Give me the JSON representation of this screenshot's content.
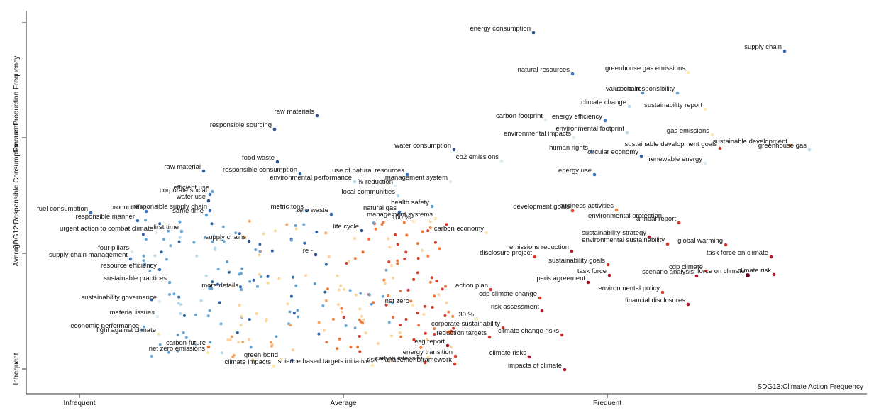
{
  "chart_data": {
    "type": "scatter",
    "title": "",
    "xlabel": "SDG13:Climate Action Frequency",
    "ylabel": "SDG12:Responsible Consumption and Production Frequency",
    "xlim": [
      0,
      1225
    ],
    "ylim": [
      0,
      582
    ],
    "x_ticks": [
      {
        "value": 112,
        "label": "Infrequent"
      },
      {
        "value": 484,
        "label": "Average"
      },
      {
        "value": 856,
        "label": "Frequent"
      }
    ],
    "y_ticks": [
      {
        "value": 520,
        "label": "Infrequent"
      },
      {
        "value": 357,
        "label": "Average"
      },
      {
        "value": 194,
        "label": "Frequent"
      },
      {
        "value": 32,
        "label": ""
      }
    ],
    "legend": "none",
    "grid": false,
    "labeled_points": [
      {
        "term": "energy consumption",
        "x": 752,
        "y": 46,
        "color": "#2c4e8c"
      },
      {
        "term": "supply chain",
        "x": 1106,
        "y": 72,
        "color": "#2c63a6"
      },
      {
        "term": "natural resources",
        "x": 807,
        "y": 104,
        "color": "#3a75b8"
      },
      {
        "term": "greenhouse gas emissions",
        "x": 970,
        "y": 102,
        "color": "#fde9b0"
      },
      {
        "term": "social responsibility",
        "x": 955,
        "y": 131,
        "color": "#6aa6d3"
      },
      {
        "term": "value chain",
        "x": 906,
        "y": 131,
        "color": "#5594c9"
      },
      {
        "term": "climate change",
        "x": 887,
        "y": 150,
        "color": "#b6d6ea"
      },
      {
        "term": "raw materials",
        "x": 447,
        "y": 163,
        "color": "#2c4e8c"
      },
      {
        "term": "carbon footprint",
        "x": 769,
        "y": 169,
        "color": "#dcebf3"
      },
      {
        "term": "energy efficiency",
        "x": 853,
        "y": 170,
        "color": "#3a75b8"
      },
      {
        "term": "sustainability report",
        "x": 994,
        "y": 154,
        "color": "#fde9b0"
      },
      {
        "term": "responsible sourcing",
        "x": 387,
        "y": 182,
        "color": "#2c4e8c"
      },
      {
        "term": "environmental impacts",
        "x": 809,
        "y": 194,
        "color": "#dcebf3"
      },
      {
        "term": "environmental footprint",
        "x": 884,
        "y": 187,
        "color": "#b6d6ea"
      },
      {
        "term": "gas emissions",
        "x": 1004,
        "y": 190,
        "color": "#fde9b0"
      },
      {
        "term": "sustainable development",
        "x": 1114,
        "y": 205,
        "color": "#f07a3a"
      },
      {
        "term": "greenhouse gas",
        "x": 1141,
        "y": 211,
        "color": "#b6d6ea"
      },
      {
        "term": "water consumption",
        "x": 640,
        "y": 211,
        "color": "#2c4e8c"
      },
      {
        "term": "human rights",
        "x": 833,
        "y": 214,
        "color": "#3a75b8"
      },
      {
        "term": "circular economy",
        "x": 904,
        "y": 220,
        "color": "#2c63a6"
      },
      {
        "term": "sustainable development goals",
        "x": 1015,
        "y": 209,
        "color": "#d63b2b"
      },
      {
        "term": "renewable energy",
        "x": 994,
        "y": 230,
        "color": "#dcebf3"
      },
      {
        "term": "food waste",
        "x": 391,
        "y": 228,
        "color": "#2c4e8c"
      },
      {
        "term": "management system",
        "x": 635,
        "y": 256,
        "color": "#dcebf3"
      },
      {
        "term": "co2 emissions",
        "x": 707,
        "y": 227,
        "color": "#dcebf3"
      },
      {
        "term": "raw material",
        "x": 287,
        "y": 241,
        "color": "#2c63a6"
      },
      {
        "term": "use of natural resources",
        "x": 574,
        "y": 246,
        "color": "#3a75b8"
      },
      {
        "term": "responsible consumption",
        "x": 423,
        "y": 245,
        "color": "#2c63a6"
      },
      {
        "term": "energy use",
        "x": 838,
        "y": 246,
        "color": "#3a75b8"
      },
      {
        "term": "environmental performance",
        "x": 500,
        "y": 256,
        "color": "#b6d6ea"
      },
      {
        "term": "% reduction",
        "x": 558,
        "y": 262,
        "color": "#dcebf3"
      },
      {
        "term": "local communities",
        "x": 561,
        "y": 276,
        "color": "#b6d6ea"
      },
      {
        "term": "corporate social",
        "x": 296,
        "y": 274,
        "color": "#3a75b8"
      },
      {
        "term": "efficient use",
        "x": 299,
        "y": 270,
        "color": "#6aa6d3"
      },
      {
        "term": "water use",
        "x": 294,
        "y": 283,
        "color": "#2c4e8c"
      },
      {
        "term": "health safety",
        "x": 609,
        "y": 291,
        "color": "#6aa6d3"
      },
      {
        "term": "business activities",
        "x": 869,
        "y": 296,
        "color": "#f07a3a"
      },
      {
        "term": "fuel consumption",
        "x": 128,
        "y": 300,
        "color": "#3a75b8"
      },
      {
        "term": "product life",
        "x": 206,
        "y": 298,
        "color": "#3a75b8"
      },
      {
        "term": "same time",
        "x": 291,
        "y": 303,
        "color": "#6aa6d3"
      },
      {
        "term": "responsible supply chain",
        "x": 296,
        "y": 297,
        "color": "#2c63a6"
      },
      {
        "term": "metric tons",
        "x": 432,
        "y": 297,
        "color": "#3a75b8"
      },
      {
        "term": "natural gas",
        "x": 563,
        "y": 299,
        "color": "#3a75b8"
      },
      {
        "term": "management systems",
        "x": 614,
        "y": 308,
        "color": "#fde9b0"
      },
      {
        "term": "environmental protection",
        "x": 937,
        "y": 310,
        "color": "#dcebf3"
      },
      {
        "term": "development goals",
        "x": 807,
        "y": 297,
        "color": "#d63b2b"
      },
      {
        "term": "annual report",
        "x": 957,
        "y": 314,
        "color": "#d63b2b"
      },
      {
        "term": "zero waste",
        "x": 467,
        "y": 302,
        "color": "#2c63a6"
      },
      {
        "term": "responsible manner",
        "x": 194,
        "y": 311,
        "color": "#3a75b8"
      },
      {
        "term": "life cycle",
        "x": 510,
        "y": 325,
        "color": "#2c4e8c"
      },
      {
        "term": "100 %",
        "x": 583,
        "y": 312,
        "color": "#fde9b0"
      },
      {
        "term": "first time",
        "x": 256,
        "y": 326,
        "color": "#6aa6d3"
      },
      {
        "term": "carbon economy",
        "x": 686,
        "y": 328,
        "color": "#fde9b0"
      },
      {
        "term": "sustainability strategy",
        "x": 915,
        "y": 334,
        "color": "#b2182b"
      },
      {
        "term": "urgent action to combat climate",
        "x": 220,
        "y": 328,
        "color": "#dcebf3"
      },
      {
        "term": "supply chains",
        "x": 351,
        "y": 340,
        "color": "#2c4e8c"
      },
      {
        "term": "four pillars",
        "x": 186,
        "y": 355,
        "color": "#dcebf3"
      },
      {
        "term": "emissions reduction",
        "x": 806,
        "y": 354,
        "color": "#b2182b"
      },
      {
        "term": "environmental sustainability",
        "x": 941,
        "y": 344,
        "color": "#d63b2b"
      },
      {
        "term": "global warming",
        "x": 1023,
        "y": 345,
        "color": "#d63b2b"
      },
      {
        "term": "supply chain management",
        "x": 184,
        "y": 365,
        "color": "#3a75b8"
      },
      {
        "term": "re -",
        "x": 445,
        "y": 359,
        "color": "#2c4e8c"
      },
      {
        "term": "disclosure project",
        "x": 754,
        "y": 362,
        "color": "#d63b2b"
      },
      {
        "term": "cdp climate",
        "x": 995,
        "y": 382,
        "color": "#d63b2b"
      },
      {
        "term": "task force on climate",
        "x": 1087,
        "y": 362,
        "color": "#b2182b"
      },
      {
        "term": "sustainability goals",
        "x": 857,
        "y": 373,
        "color": "#d63b2b"
      },
      {
        "term": "paris agreement",
        "x": 829,
        "y": 398,
        "color": "#b2182b"
      },
      {
        "term": "task force",
        "x": 859,
        "y": 388,
        "color": "#b2182b"
      },
      {
        "term": "scenario analysis",
        "x": 982,
        "y": 389,
        "color": "#b2182b"
      },
      {
        "term": "climate risk",
        "x": 1091,
        "y": 387,
        "color": "#b2182b"
      },
      {
        "term": "force on climate",
        "x": 1054,
        "y": 388,
        "color": "#67001f"
      },
      {
        "term": "resource efficiency",
        "x": 225,
        "y": 380,
        "color": "#3a75b8"
      },
      {
        "term": "action plan",
        "x": 692,
        "y": 408,
        "color": "#d63b2b"
      },
      {
        "term": "sustainable practices",
        "x": 239,
        "y": 398,
        "color": "#6aa6d3"
      },
      {
        "term": "more details",
        "x": 340,
        "y": 408,
        "color": "#6aa6d3"
      },
      {
        "term": "environmental policy",
        "x": 934,
        "y": 412,
        "color": "#d63b2b"
      },
      {
        "term": "cdp climate change",
        "x": 761,
        "y": 420,
        "color": "#d63b2b"
      },
      {
        "term": "sustainability governance",
        "x": 225,
        "y": 425,
        "color": "#dcebf3"
      },
      {
        "term": "financial disclosures",
        "x": 970,
        "y": 429,
        "color": "#b2182b"
      },
      {
        "term": "net zero",
        "x": 581,
        "y": 430,
        "color": "#fde9b0"
      },
      {
        "term": "risk assessment",
        "x": 764,
        "y": 438,
        "color": "#b2182b"
      },
      {
        "term": "material issues",
        "x": 222,
        "y": 446,
        "color": "#dcebf3"
      },
      {
        "term": "30 %",
        "x": 672,
        "y": 449,
        "color": "#fde9b0"
      },
      {
        "term": "corporate sustainability",
        "x": 709,
        "y": 462,
        "color": "#d63b2b"
      },
      {
        "term": "economic performance",
        "x": 200,
        "y": 465,
        "color": "#6aa6d3"
      },
      {
        "term": "reduction targets",
        "x": 690,
        "y": 475,
        "color": "#d63b2b"
      },
      {
        "term": "climate change risks",
        "x": 792,
        "y": 472,
        "color": "#d63b2b"
      },
      {
        "term": "fight against climate",
        "x": 224,
        "y": 471,
        "color": "#fde9b0"
      },
      {
        "term": "esg report",
        "x": 631,
        "y": 487,
        "color": "#b2182b"
      },
      {
        "term": "carbon future",
        "x": 294,
        "y": 489,
        "color": "#f07a3a"
      },
      {
        "term": "climate risks",
        "x": 746,
        "y": 503,
        "color": "#b2182b"
      },
      {
        "term": "net zero emissions",
        "x": 293,
        "y": 497,
        "color": "#fde9b0"
      },
      {
        "term": "green bond",
        "x": 396,
        "y": 506,
        "color": "#fde9b0"
      },
      {
        "term": "energy transition",
        "x": 642,
        "y": 502,
        "color": "#d63b2b"
      },
      {
        "term": "carbon intensity",
        "x": 599,
        "y": 511,
        "color": "#d63b2b"
      },
      {
        "term": "climate impacts",
        "x": 386,
        "y": 516,
        "color": "#fde9b0"
      },
      {
        "term": "science based targets initiative",
        "x": 525,
        "y": 515,
        "color": "#fde9b0"
      },
      {
        "term": "risk management framework",
        "x": 641,
        "y": 513,
        "color": "#d63b2b"
      },
      {
        "term": "impacts of climate",
        "x": 796,
        "y": 521,
        "color": "#b2182b"
      }
    ]
  }
}
